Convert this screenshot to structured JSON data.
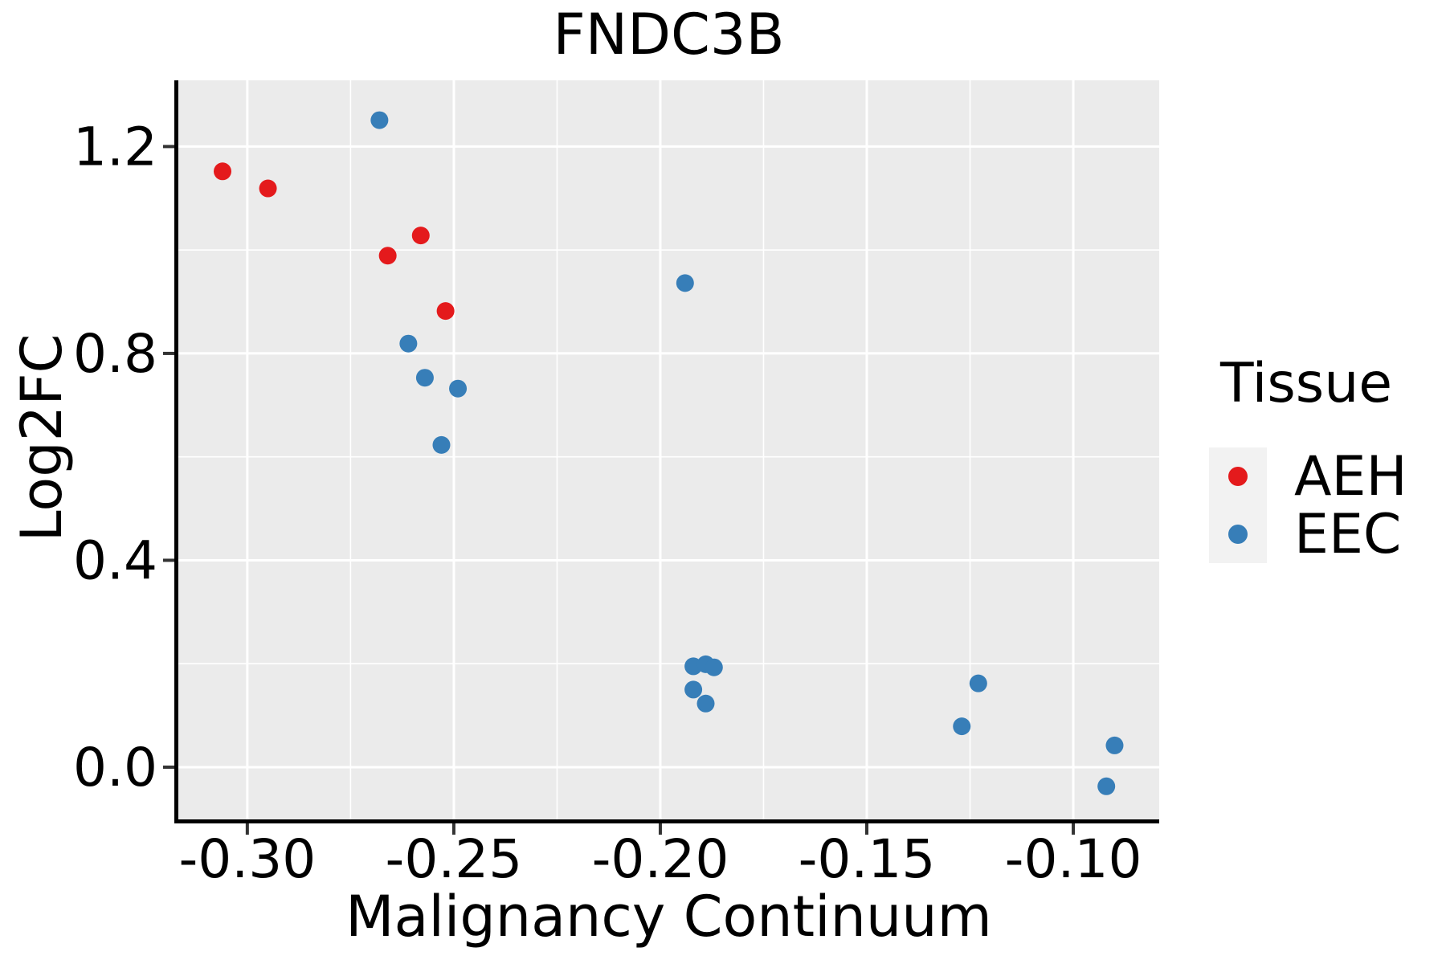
{
  "chart_data": {
    "type": "scatter",
    "title": "FNDC3B",
    "xlabel": "Malignancy Continuum",
    "ylabel": "Log2FC",
    "legend_title": "Tissue",
    "legend_position": "right",
    "grid": "white major and minor gridlines on gray panel",
    "panel_bg": "#EBEBEB",
    "xlim": [
      -0.3167,
      -0.0792
    ],
    "ylim": [
      -0.101,
      1.328
    ],
    "x_ticks": {
      "values": [
        -0.3,
        -0.25,
        -0.2,
        -0.15,
        -0.1
      ],
      "labels": [
        "-0.30",
        "-0.25",
        "-0.20",
        "-0.15",
        "-0.10"
      ],
      "minor_step": 0.025
    },
    "y_ticks": {
      "values": [
        0.0,
        0.4,
        0.8,
        1.2
      ],
      "labels": [
        "0.0",
        "0.4",
        "0.8",
        "1.2"
      ],
      "minor_step": 0.2
    },
    "series": [
      {
        "name": "AEH",
        "color": "#E41A1C",
        "points": [
          [
            -0.306,
            1.152
          ],
          [
            -0.295,
            1.119
          ],
          [
            -0.266,
            0.989
          ],
          [
            -0.258,
            1.028
          ],
          [
            -0.252,
            0.882
          ]
        ]
      },
      {
        "name": "EEC",
        "color": "#377EB8",
        "points": [
          [
            -0.268,
            1.251
          ],
          [
            -0.194,
            0.936
          ],
          [
            -0.261,
            0.819
          ],
          [
            -0.257,
            0.753
          ],
          [
            -0.249,
            0.732
          ],
          [
            -0.253,
            0.623
          ],
          [
            -0.192,
            0.195
          ],
          [
            -0.189,
            0.199
          ],
          [
            -0.187,
            0.193
          ],
          [
            -0.192,
            0.15
          ],
          [
            -0.189,
            0.123
          ],
          [
            -0.123,
            0.162
          ],
          [
            -0.127,
            0.079
          ],
          [
            -0.09,
            0.042
          ],
          [
            -0.092,
            -0.037
          ]
        ]
      }
    ]
  },
  "style": {
    "panel_bg": "#EBEBEB",
    "grid_color": "#FFFFFF",
    "axis_line_color": "#000000",
    "tick_mark_color": "#333333",
    "tick_label_color": "#000000",
    "legend_key_bg": "#F2F2F2",
    "aeh_color": "#E41A1C",
    "eec_color": "#377EB8"
  }
}
